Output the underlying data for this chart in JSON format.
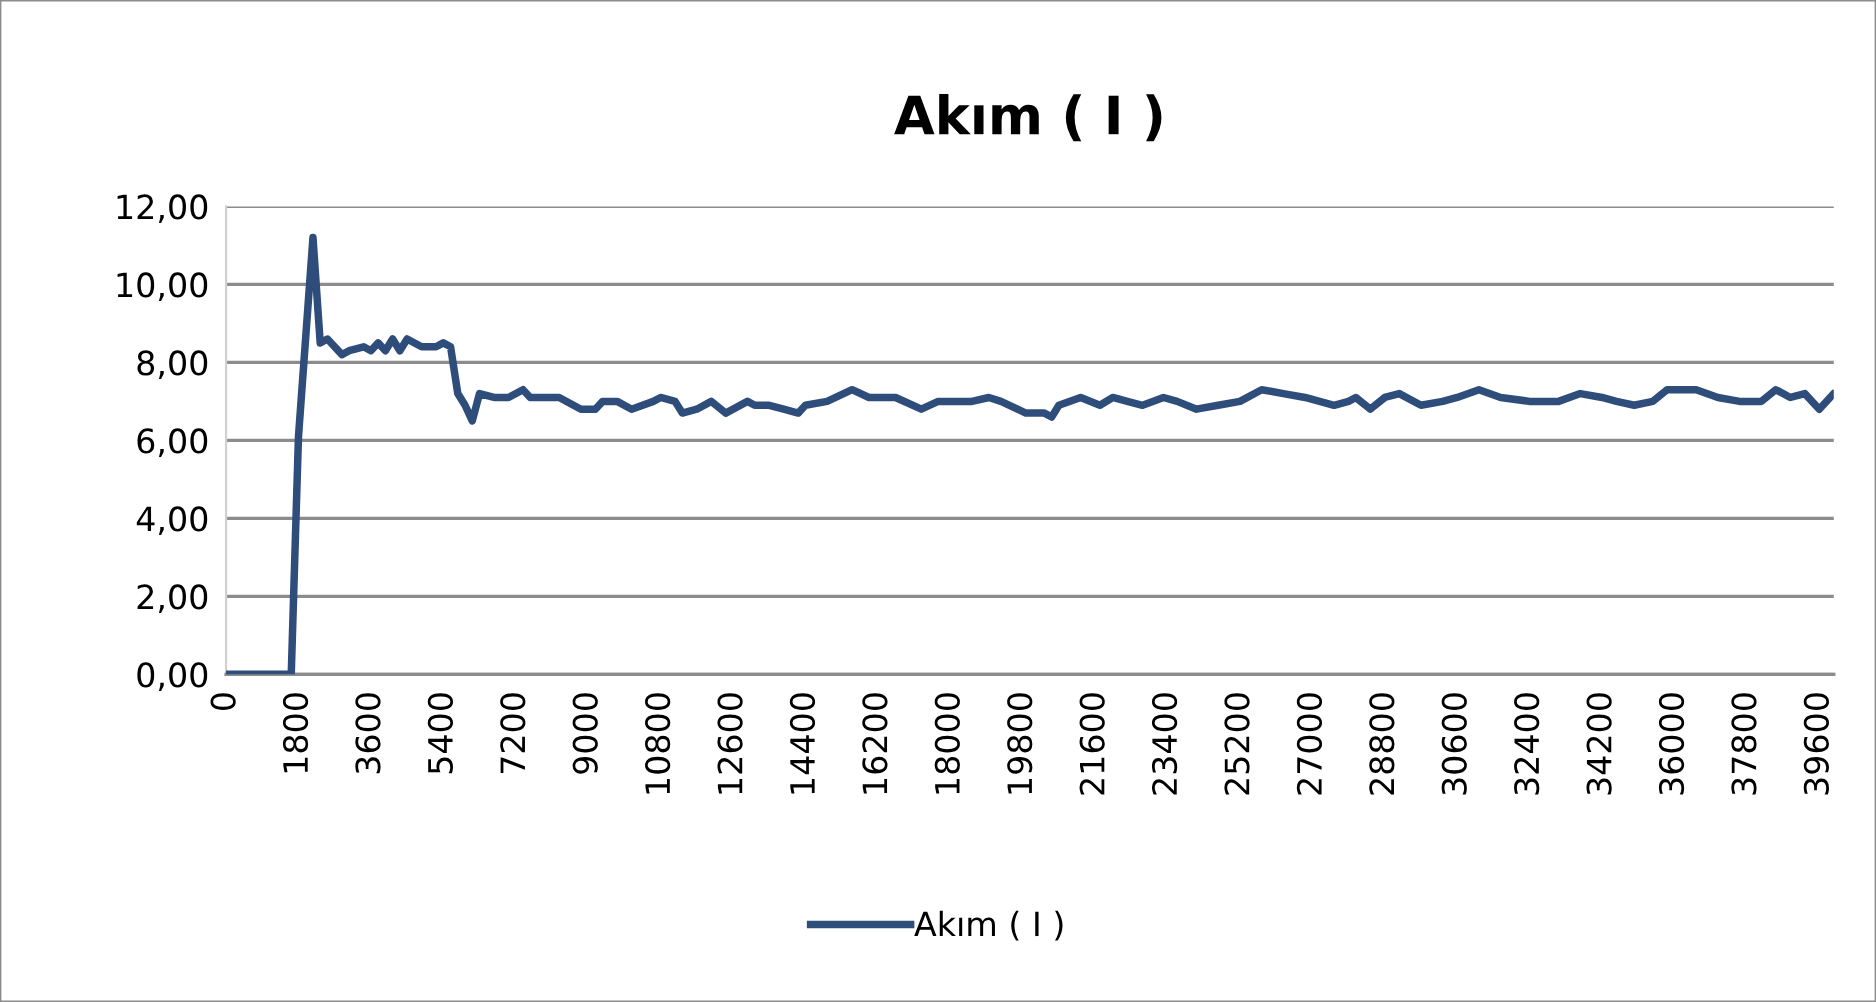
{
  "chart_data": {
    "type": "line",
    "title": "Akım ( I )",
    "x": [
      0,
      1620,
      1800,
      2160,
      2340,
      2520,
      2880,
      3060,
      3420,
      3600,
      3780,
      3960,
      4140,
      4320,
      4500,
      4860,
      5220,
      5400,
      5580,
      5760,
      5940,
      6120,
      6300,
      6660,
      7020,
      7380,
      7560,
      8280,
      8820,
      9180,
      9360,
      9720,
      10080,
      10620,
      10800,
      11160,
      11340,
      11700,
      12060,
      12420,
      12960,
      13140,
      13500,
      13860,
      14220,
      14400,
      14940,
      15560,
      15980,
      16640,
      17280,
      17700,
      18540,
      18960,
      19260,
      19880,
      20340,
      20520,
      20700,
      21240,
      21720,
      22040,
      22400,
      22780,
      23300,
      23640,
      24120,
      24660,
      25200,
      25740,
      26280,
      26820,
      27180,
      27540,
      27900,
      28080,
      28440,
      28800,
      29160,
      29700,
      30240,
      30600,
      31140,
      31680,
      32400,
      33120,
      33660,
      34200,
      34560,
      35000,
      35460,
      35820,
      36540,
      37080,
      37620,
      38160,
      38520,
      38880,
      39240,
      39600,
      39960
    ],
    "series": [
      {
        "name": "Akım ( I )",
        "color": "#2e4d7b",
        "values": [
          0,
          0,
          6.1,
          11.2,
          8.5,
          8.6,
          8.2,
          8.3,
          8.4,
          8.3,
          8.5,
          8.3,
          8.6,
          8.3,
          8.6,
          8.4,
          8.4,
          8.5,
          8.4,
          7.2,
          6.9,
          6.5,
          7.2,
          7.1,
          7.1,
          7.3,
          7.1,
          7.1,
          6.8,
          6.8,
          7.0,
          7.0,
          6.8,
          7.0,
          7.1,
          7.0,
          6.7,
          6.8,
          7.0,
          6.7,
          7.0,
          6.9,
          6.9,
          6.8,
          6.7,
          6.9,
          7.0,
          7.3,
          7.1,
          7.1,
          6.8,
          7.0,
          7.0,
          7.1,
          7.0,
          6.7,
          6.7,
          6.6,
          6.9,
          7.1,
          6.9,
          7.1,
          7.0,
          6.9,
          7.1,
          7.0,
          6.8,
          6.9,
          7.0,
          7.3,
          7.2,
          7.1,
          7.0,
          6.9,
          7.0,
          7.1,
          6.8,
          7.1,
          7.2,
          6.9,
          7.0,
          7.1,
          7.3,
          7.1,
          7.0,
          7.0,
          7.2,
          7.1,
          7.0,
          6.9,
          7.0,
          7.3,
          7.3,
          7.1,
          7.0,
          7.0,
          7.3,
          7.1,
          7.2,
          6.8,
          7.2
        ]
      }
    ],
    "xlim": [
      0,
      39960
    ],
    "xticks": [
      0,
      1800,
      3600,
      5400,
      7200,
      9000,
      10800,
      12600,
      14400,
      16200,
      18000,
      19800,
      21600,
      23400,
      25200,
      27000,
      28800,
      30600,
      32400,
      34200,
      36000,
      37800,
      39600
    ],
    "ylim": [
      0,
      12
    ],
    "yticks": [
      {
        "value": 0,
        "label": "0,00"
      },
      {
        "value": 2,
        "label": "2,00"
      },
      {
        "value": 4,
        "label": "4,00"
      },
      {
        "value": 6,
        "label": "6,00"
      },
      {
        "value": 8,
        "label": "8,00"
      },
      {
        "value": 10,
        "label": "10,00"
      },
      {
        "value": 12,
        "label": "12,00"
      }
    ],
    "grid": "y",
    "legend": "bottom",
    "marker": "none",
    "line_style": "solid"
  }
}
